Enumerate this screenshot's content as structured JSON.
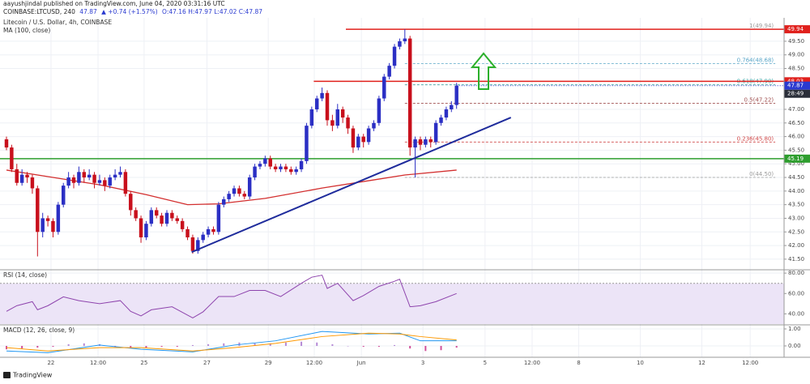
{
  "header": {
    "published": "aayushjindal published on TradingView.com, June 04, 2020 03:31:16 UTC",
    "line2": [
      {
        "text": "COINBASE:LTCUSD, 240",
        "color": "#222222"
      },
      {
        "text": "47.87",
        "color": "#2a3ad0"
      },
      {
        "text": "▲ +0.74 (+1.57%)",
        "color": "#2a3ad0"
      },
      {
        "text": "O:47.16 H:47.97 L:47.02 C:47.87",
        "color": "#2a3ad0"
      }
    ],
    "footer": "TradingView"
  },
  "chart_data": [
    {
      "type": "candlestick",
      "title": "Litecoin / U.S. Dollar, 4h, COINBASE",
      "up_color": "#2b2fc4",
      "down_color": "#c8101c",
      "xlim": [
        -1.25,
        150.3
      ],
      "xticks": [
        {
          "value": 8.6,
          "label": "22"
        },
        {
          "value": 17.7,
          "label": "12:00"
        },
        {
          "value": 26.6,
          "label": "25"
        },
        {
          "value": 38.75,
          "label": "27"
        },
        {
          "value": 50.6,
          "label": "29"
        },
        {
          "value": 59.5,
          "label": "12:00"
        },
        {
          "value": 68.6,
          "label": "Jun"
        },
        {
          "value": 80.5,
          "label": "3"
        },
        {
          "value": 92.5,
          "label": "5"
        },
        {
          "value": 101.6,
          "label": "12:00"
        },
        {
          "value": 110.6,
          "label": "8"
        },
        {
          "value": 122.5,
          "label": "10"
        },
        {
          "value": 134.4,
          "label": "12"
        },
        {
          "value": 143.75,
          "label": "12:00"
        }
      ],
      "ylim": [
        41.14,
        50.36
      ],
      "yticks": [
        {
          "value": 41.5,
          "label": "41.50"
        },
        {
          "value": 42,
          "label": "42.00"
        },
        {
          "value": 42.5,
          "label": "42.50"
        },
        {
          "value": 43,
          "label": "43.00"
        },
        {
          "value": 43.5,
          "label": "43.50"
        },
        {
          "value": 44,
          "label": "44.00"
        },
        {
          "value": 44.5,
          "label": "44.50"
        },
        {
          "value": 45,
          "label": "45.00"
        },
        {
          "value": 45.5,
          "label": "45.50"
        },
        {
          "value": 46,
          "label": "46.00"
        },
        {
          "value": 46.5,
          "label": "46.50"
        },
        {
          "value": 47,
          "label": "47.00"
        },
        {
          "value": 48.5,
          "label": "48.50"
        },
        {
          "value": 49,
          "label": "49.00"
        },
        {
          "value": 49.5,
          "label": "49.50"
        }
      ],
      "grid": true,
      "ohlc": [
        [
          45.9,
          46.0,
          45.5,
          45.6
        ],
        [
          45.6,
          45.7,
          44.7,
          44.8
        ],
        [
          44.8,
          45.0,
          44.2,
          44.3
        ],
        [
          44.3,
          44.8,
          44.2,
          44.6
        ],
        [
          44.6,
          44.7,
          44.3,
          44.5
        ],
        [
          44.5,
          44.6,
          43.9,
          44.1
        ],
        [
          44.1,
          44.2,
          41.6,
          42.5
        ],
        [
          42.5,
          43.2,
          42.3,
          43.0
        ],
        [
          43.0,
          43.1,
          42.7,
          42.9
        ],
        [
          42.9,
          43.0,
          42.3,
          42.5
        ],
        [
          42.5,
          43.6,
          42.4,
          43.5
        ],
        [
          43.5,
          44.3,
          43.4,
          44.2
        ],
        [
          44.2,
          44.7,
          44.1,
          44.5
        ],
        [
          44.5,
          44.6,
          44.1,
          44.3
        ],
        [
          44.3,
          44.9,
          44.2,
          44.7
        ],
        [
          44.7,
          44.8,
          44.3,
          44.5
        ],
        [
          44.5,
          44.8,
          44.4,
          44.6
        ],
        [
          44.6,
          44.7,
          44.1,
          44.3
        ],
        [
          44.3,
          44.6,
          44.2,
          44.4
        ],
        [
          44.4,
          44.5,
          44.0,
          44.2
        ],
        [
          44.2,
          44.6,
          44.1,
          44.5
        ],
        [
          44.5,
          44.8,
          44.4,
          44.6
        ],
        [
          44.6,
          44.9,
          44.5,
          44.7
        ],
        [
          44.7,
          44.8,
          43.8,
          43.9
        ],
        [
          43.9,
          44.0,
          43.1,
          43.3
        ],
        [
          43.3,
          43.4,
          42.9,
          43.0
        ],
        [
          43.0,
          43.1,
          42.1,
          42.3
        ],
        [
          42.3,
          42.9,
          42.2,
          42.8
        ],
        [
          42.8,
          43.4,
          42.7,
          43.3
        ],
        [
          43.3,
          43.4,
          43.0,
          43.1
        ],
        [
          43.1,
          43.2,
          42.7,
          42.8
        ],
        [
          42.8,
          43.3,
          42.7,
          43.2
        ],
        [
          43.2,
          43.3,
          42.9,
          43.0
        ],
        [
          43.0,
          43.1,
          42.8,
          42.9
        ],
        [
          42.9,
          43.0,
          42.5,
          42.6
        ],
        [
          42.6,
          42.7,
          42.2,
          42.3
        ],
        [
          42.3,
          42.4,
          41.7,
          41.8
        ],
        [
          41.8,
          42.3,
          41.7,
          42.2
        ],
        [
          42.2,
          42.5,
          42.1,
          42.4
        ],
        [
          42.4,
          42.7,
          42.3,
          42.6
        ],
        [
          42.6,
          42.7,
          42.4,
          42.5
        ],
        [
          42.5,
          43.6,
          42.4,
          43.5
        ],
        [
          43.5,
          43.8,
          43.4,
          43.7
        ],
        [
          43.7,
          44.0,
          43.6,
          43.9
        ],
        [
          43.9,
          44.2,
          43.8,
          44.1
        ],
        [
          44.1,
          44.2,
          43.8,
          43.9
        ],
        [
          43.9,
          44.0,
          43.7,
          43.8
        ],
        [
          43.8,
          44.6,
          43.7,
          44.5
        ],
        [
          44.5,
          45.0,
          44.4,
          44.9
        ],
        [
          44.9,
          45.1,
          44.8,
          45.0
        ],
        [
          45.0,
          45.3,
          44.9,
          45.2
        ],
        [
          45.2,
          45.3,
          44.8,
          44.9
        ],
        [
          44.9,
          45.0,
          44.7,
          44.8
        ],
        [
          44.8,
          45.0,
          44.7,
          44.9
        ],
        [
          44.9,
          45.0,
          44.7,
          44.8
        ],
        [
          44.8,
          44.9,
          44.6,
          44.7
        ],
        [
          44.7,
          44.9,
          44.6,
          44.8
        ],
        [
          44.8,
          45.2,
          44.7,
          45.1
        ],
        [
          45.1,
          46.5,
          45.0,
          46.4
        ],
        [
          46.4,
          47.1,
          46.3,
          47.0
        ],
        [
          47.0,
          47.5,
          46.9,
          47.4
        ],
        [
          47.4,
          47.8,
          47.3,
          47.6
        ],
        [
          47.6,
          47.7,
          46.4,
          46.6
        ],
        [
          46.6,
          46.8,
          46.2,
          46.4
        ],
        [
          46.4,
          47.2,
          46.3,
          47.0
        ],
        [
          47.0,
          47.1,
          46.5,
          46.7
        ],
        [
          46.7,
          46.8,
          46.1,
          46.3
        ],
        [
          46.3,
          46.4,
          45.4,
          45.6
        ],
        [
          45.6,
          46.1,
          45.5,
          46.0
        ],
        [
          46.0,
          46.1,
          45.6,
          45.8
        ],
        [
          45.8,
          46.4,
          45.7,
          46.3
        ],
        [
          46.3,
          46.6,
          46.2,
          46.5
        ],
        [
          46.5,
          47.5,
          46.4,
          47.4
        ],
        [
          47.4,
          48.3,
          47.3,
          48.2
        ],
        [
          48.2,
          48.7,
          48.1,
          48.6
        ],
        [
          48.6,
          49.4,
          48.5,
          49.3
        ],
        [
          49.3,
          49.6,
          49.2,
          49.5
        ],
        [
          49.5,
          49.94,
          49.4,
          49.6
        ],
        [
          49.6,
          49.7,
          45.3,
          45.6
        ],
        [
          45.6,
          46.0,
          44.5,
          45.9
        ],
        [
          45.9,
          46.0,
          45.5,
          45.7
        ],
        [
          45.7,
          46.0,
          45.6,
          45.9
        ],
        [
          45.9,
          46.0,
          45.6,
          45.8
        ],
        [
          45.8,
          46.6,
          45.7,
          46.5
        ],
        [
          46.5,
          46.8,
          46.4,
          46.7
        ],
        [
          46.7,
          47.1,
          46.6,
          47.0
        ],
        [
          47.0,
          47.3,
          46.9,
          47.16
        ],
        [
          47.16,
          47.97,
          47.02,
          47.87
        ]
      ],
      "series": [
        {
          "name": "MA (100, close)",
          "color": "#d32f2f",
          "x": [
            0,
            8,
            18,
            27,
            35,
            41,
            50,
            61,
            71,
            77,
            87
          ],
          "values": [
            44.77,
            44.53,
            44.23,
            43.87,
            43.5,
            43.53,
            43.73,
            44.11,
            44.41,
            44.59,
            44.77
          ]
        }
      ],
      "trendline": {
        "color": "#1f2c9c",
        "x": [
          35.8,
          97.5
        ],
        "values": [
          41.76,
          46.7
        ]
      },
      "hlines": [
        {
          "value": 49.94,
          "color": "#e0201c",
          "x0": 65.6
        },
        {
          "value": 48.03,
          "color": "#e0201c",
          "x0": 59.4
        },
        {
          "value": 45.19,
          "color": "#2e9e2e",
          "x0": -1.25
        }
      ],
      "last_color": "#2a3ad0",
      "countdown": "28:49",
      "fib": {
        "x": [
          77,
          148.6
        ],
        "levels": [
          {
            "label": "1(49.94)",
            "value": 49.94,
            "color": "#9a9a9a"
          },
          {
            "label": "0.764(48.68)",
            "value": 48.68,
            "color": "#5aa6c8"
          },
          {
            "label": "0.618(47.90)",
            "value": 47.9,
            "color": "#3f9f9f"
          },
          {
            "label": "0.5(47.22)",
            "value": 47.22,
            "color": "#a05050"
          },
          {
            "label": "0.236(45.80)",
            "value": 45.8,
            "color": "#d04848"
          },
          {
            "label": "0(44.50)",
            "value": 44.5,
            "color": "#9a9a9a"
          }
        ]
      }
    },
    {
      "type": "line",
      "title": "RSI (14, close)",
      "ylim": [
        30,
        82.5
      ],
      "yticks": [
        {
          "value": 80,
          "label": "80.00"
        },
        {
          "value": 60,
          "label": "60.00"
        },
        {
          "value": 40,
          "label": "40.00"
        }
      ],
      "band": [
        30,
        70
      ],
      "band_color": "#ece4f7",
      "series": [
        {
          "color": "#8e44ad",
          "x": [
            0,
            2,
            5,
            6,
            8,
            11,
            14,
            18,
            22,
            24,
            26,
            28,
            32,
            36,
            38,
            41,
            44,
            47,
            50,
            53,
            57,
            59,
            61,
            62,
            64,
            67,
            69,
            72,
            75,
            76,
            78,
            80,
            83,
            87
          ],
          "values": [
            42.5,
            48,
            52,
            44,
            48,
            56.7,
            53,
            50,
            53,
            42.5,
            38,
            44,
            47,
            36,
            42,
            57,
            57,
            63,
            63,
            57,
            70,
            76,
            78,
            65,
            70,
            53,
            58,
            67,
            72,
            74,
            47,
            48,
            52,
            60
          ]
        }
      ]
    },
    {
      "type": "macd",
      "title": "MACD (12, 26, close, 9)",
      "ylim": [
        -0.62,
        1.19
      ],
      "yticks": [
        {
          "value": 1,
          "label": "1.00"
        },
        {
          "value": 0,
          "label": "0.00"
        }
      ],
      "series": [
        {
          "color": "#2196f3",
          "x": [
            0,
            8,
            18,
            26,
            36,
            44,
            52,
            61,
            70,
            76,
            80,
            87
          ],
          "values": [
            -0.3,
            -0.4,
            0.05,
            -0.2,
            -0.35,
            0.05,
            0.3,
            0.85,
            0.7,
            0.75,
            0.3,
            0.3
          ]
        },
        {
          "color": "#ff9800",
          "x": [
            0,
            8,
            18,
            26,
            36,
            44,
            52,
            61,
            70,
            76,
            80,
            87
          ],
          "values": [
            -0.1,
            -0.3,
            -0.1,
            -0.1,
            -0.3,
            -0.1,
            0.15,
            0.55,
            0.75,
            0.7,
            0.55,
            0.35
          ]
        }
      ],
      "histogram": {
        "up_color": "#b58ad6",
        "down_color": "#d0509a",
        "x": [
          0,
          3,
          6,
          9,
          12,
          15,
          18,
          21,
          24,
          27,
          30,
          33,
          36,
          39,
          42,
          45,
          48,
          51,
          54,
          57,
          60,
          63,
          66,
          69,
          72,
          75,
          78,
          81,
          84,
          87
        ],
        "values": [
          -0.2,
          -0.15,
          -0.1,
          -0.05,
          0.1,
          0.15,
          0.1,
          -0.05,
          -0.1,
          -0.1,
          -0.05,
          -0.05,
          0.05,
          0.1,
          0.15,
          0.2,
          0.15,
          0.15,
          0.2,
          0.25,
          0.2,
          0.1,
          0.0,
          -0.05,
          -0.05,
          0.05,
          -0.15,
          -0.3,
          -0.25,
          -0.1
        ]
      }
    }
  ]
}
